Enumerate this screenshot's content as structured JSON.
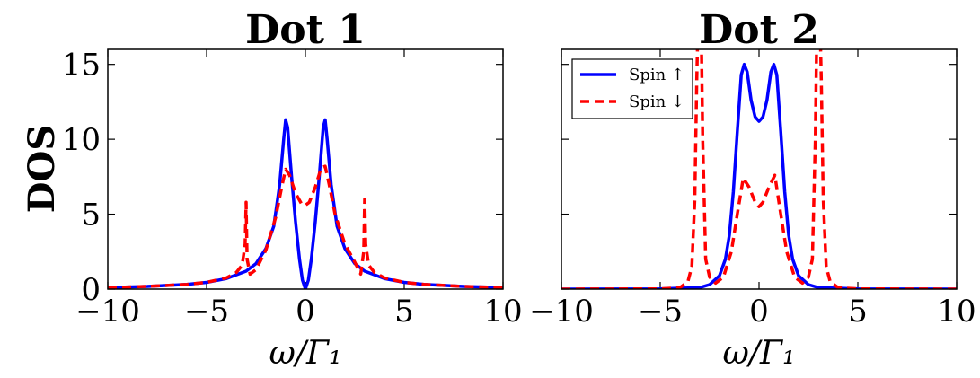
{
  "chart_data": [
    {
      "type": "line",
      "title": "Dot 1",
      "xlabel": "ω/Γ₁",
      "ylabel": "DOS",
      "xlim": [
        -10,
        10
      ],
      "ylim": [
        0,
        16
      ],
      "xticks": [
        -10,
        -5,
        0,
        5,
        10
      ],
      "yticks": [
        0,
        5,
        10,
        15
      ],
      "xtick_labels": [
        "−10",
        "−5",
        "0",
        "5",
        "10"
      ],
      "ytick_labels": [
        "0",
        "5",
        "10",
        "15"
      ],
      "grid": false,
      "series": [
        {
          "name": "Spin ↑",
          "color": "#0000ff",
          "style": "solid",
          "x": [
            -10,
            -8,
            -6,
            -5,
            -4,
            -3,
            -2.5,
            -2,
            -1.6,
            -1.3,
            -1.1,
            -1.0,
            -0.9,
            -0.7,
            -0.5,
            -0.3,
            -0.15,
            0,
            0.15,
            0.3,
            0.5,
            0.7,
            0.9,
            1.0,
            1.1,
            1.3,
            1.6,
            2,
            2.5,
            3,
            4,
            5,
            6,
            8,
            10
          ],
          "y": [
            0.1,
            0.18,
            0.32,
            0.45,
            0.7,
            1.2,
            1.7,
            2.7,
            4.2,
            7.0,
            10.0,
            11.3,
            10.8,
            7.5,
            4.5,
            2.0,
            0.6,
            0,
            0.6,
            2.0,
            4.5,
            7.5,
            10.8,
            11.3,
            10.0,
            7.0,
            4.2,
            2.7,
            1.7,
            1.2,
            0.7,
            0.45,
            0.32,
            0.18,
            0.1
          ]
        },
        {
          "name": "Spin ↓",
          "color": "#ff0000",
          "style": "dashed",
          "x": [
            -10,
            -8,
            -6,
            -5,
            -4,
            -3.5,
            -3.2,
            -3.05,
            -3.0,
            -2.95,
            -2.8,
            -2.5,
            -2,
            -1.5,
            -1.2,
            -1.0,
            -0.8,
            -0.5,
            -0.2,
            0,
            0.2,
            0.5,
            0.8,
            1.0,
            1.2,
            1.5,
            2,
            2.5,
            2.8,
            2.95,
            3.0,
            3.05,
            3.2,
            3.5,
            4,
            5,
            6,
            8,
            10
          ],
          "y": [
            0.1,
            0.18,
            0.32,
            0.45,
            0.75,
            1.1,
            1.6,
            3.0,
            5.8,
            2.0,
            1.0,
            1.3,
            2.6,
            4.8,
            6.8,
            8.0,
            7.6,
            6.4,
            5.7,
            5.6,
            5.8,
            6.8,
            8.1,
            8.2,
            7.0,
            5.0,
            3.0,
            1.8,
            1.0,
            2.5,
            6.0,
            3.0,
            1.6,
            1.1,
            0.75,
            0.45,
            0.32,
            0.18,
            0.1
          ]
        }
      ]
    },
    {
      "type": "line",
      "title": "Dot 2",
      "xlabel": "ω/Γ₁",
      "ylabel": "",
      "xlim": [
        -10,
        10
      ],
      "ylim": [
        0,
        16
      ],
      "xticks": [
        -10,
        -5,
        0,
        5,
        10
      ],
      "yticks": [
        0,
        5,
        10,
        15
      ],
      "xtick_labels": [
        "−10",
        "−5",
        "0",
        "5",
        "10"
      ],
      "ytick_labels": [],
      "grid": false,
      "legend": "top-left",
      "series": [
        {
          "name": "Spin ↑",
          "color": "#0000ff",
          "style": "solid",
          "x": [
            -10,
            -5,
            -3,
            -2.5,
            -2,
            -1.7,
            -1.5,
            -1.3,
            -1.1,
            -0.9,
            -0.75,
            -0.6,
            -0.4,
            -0.2,
            0,
            0.2,
            0.4,
            0.6,
            0.75,
            0.9,
            1.1,
            1.3,
            1.5,
            1.7,
            2,
            2.5,
            3,
            5,
            10
          ],
          "y": [
            0,
            0.02,
            0.1,
            0.3,
            0.9,
            2.0,
            3.6,
            6.5,
            10.5,
            14.3,
            15.0,
            14.5,
            12.6,
            11.5,
            11.2,
            11.5,
            12.6,
            14.5,
            15.0,
            14.3,
            10.5,
            6.5,
            3.6,
            2.0,
            0.9,
            0.3,
            0.1,
            0.02,
            0
          ]
        },
        {
          "name": "Spin ↓",
          "color": "#ff0000",
          "style": "dashed",
          "x": [
            -10,
            -5,
            -4,
            -3.6,
            -3.4,
            -3.25,
            -3.15,
            -3.05,
            -2.95,
            -2.85,
            -2.7,
            -2.5,
            -2.2,
            -1.8,
            -1.4,
            -1.1,
            -0.8,
            -0.5,
            -0.2,
            0,
            0.2,
            0.5,
            0.8,
            1.1,
            1.4,
            1.8,
            2.2,
            2.5,
            2.7,
            2.85,
            2.95,
            3.05,
            3.15,
            3.25,
            3.4,
            3.6,
            4,
            5,
            10
          ],
          "y": [
            0,
            0.02,
            0.1,
            0.5,
            1.5,
            6,
            14,
            20,
            20,
            10,
            2.0,
            0.8,
            0.4,
            0.8,
            2.5,
            5.0,
            7.4,
            6.8,
            5.8,
            5.5,
            5.8,
            6.8,
            7.6,
            5.0,
            2.5,
            0.8,
            0.4,
            0.8,
            2.0,
            10,
            20,
            20,
            14,
            6,
            1.5,
            0.5,
            0.1,
            0.02,
            0
          ]
        }
      ]
    }
  ]
}
